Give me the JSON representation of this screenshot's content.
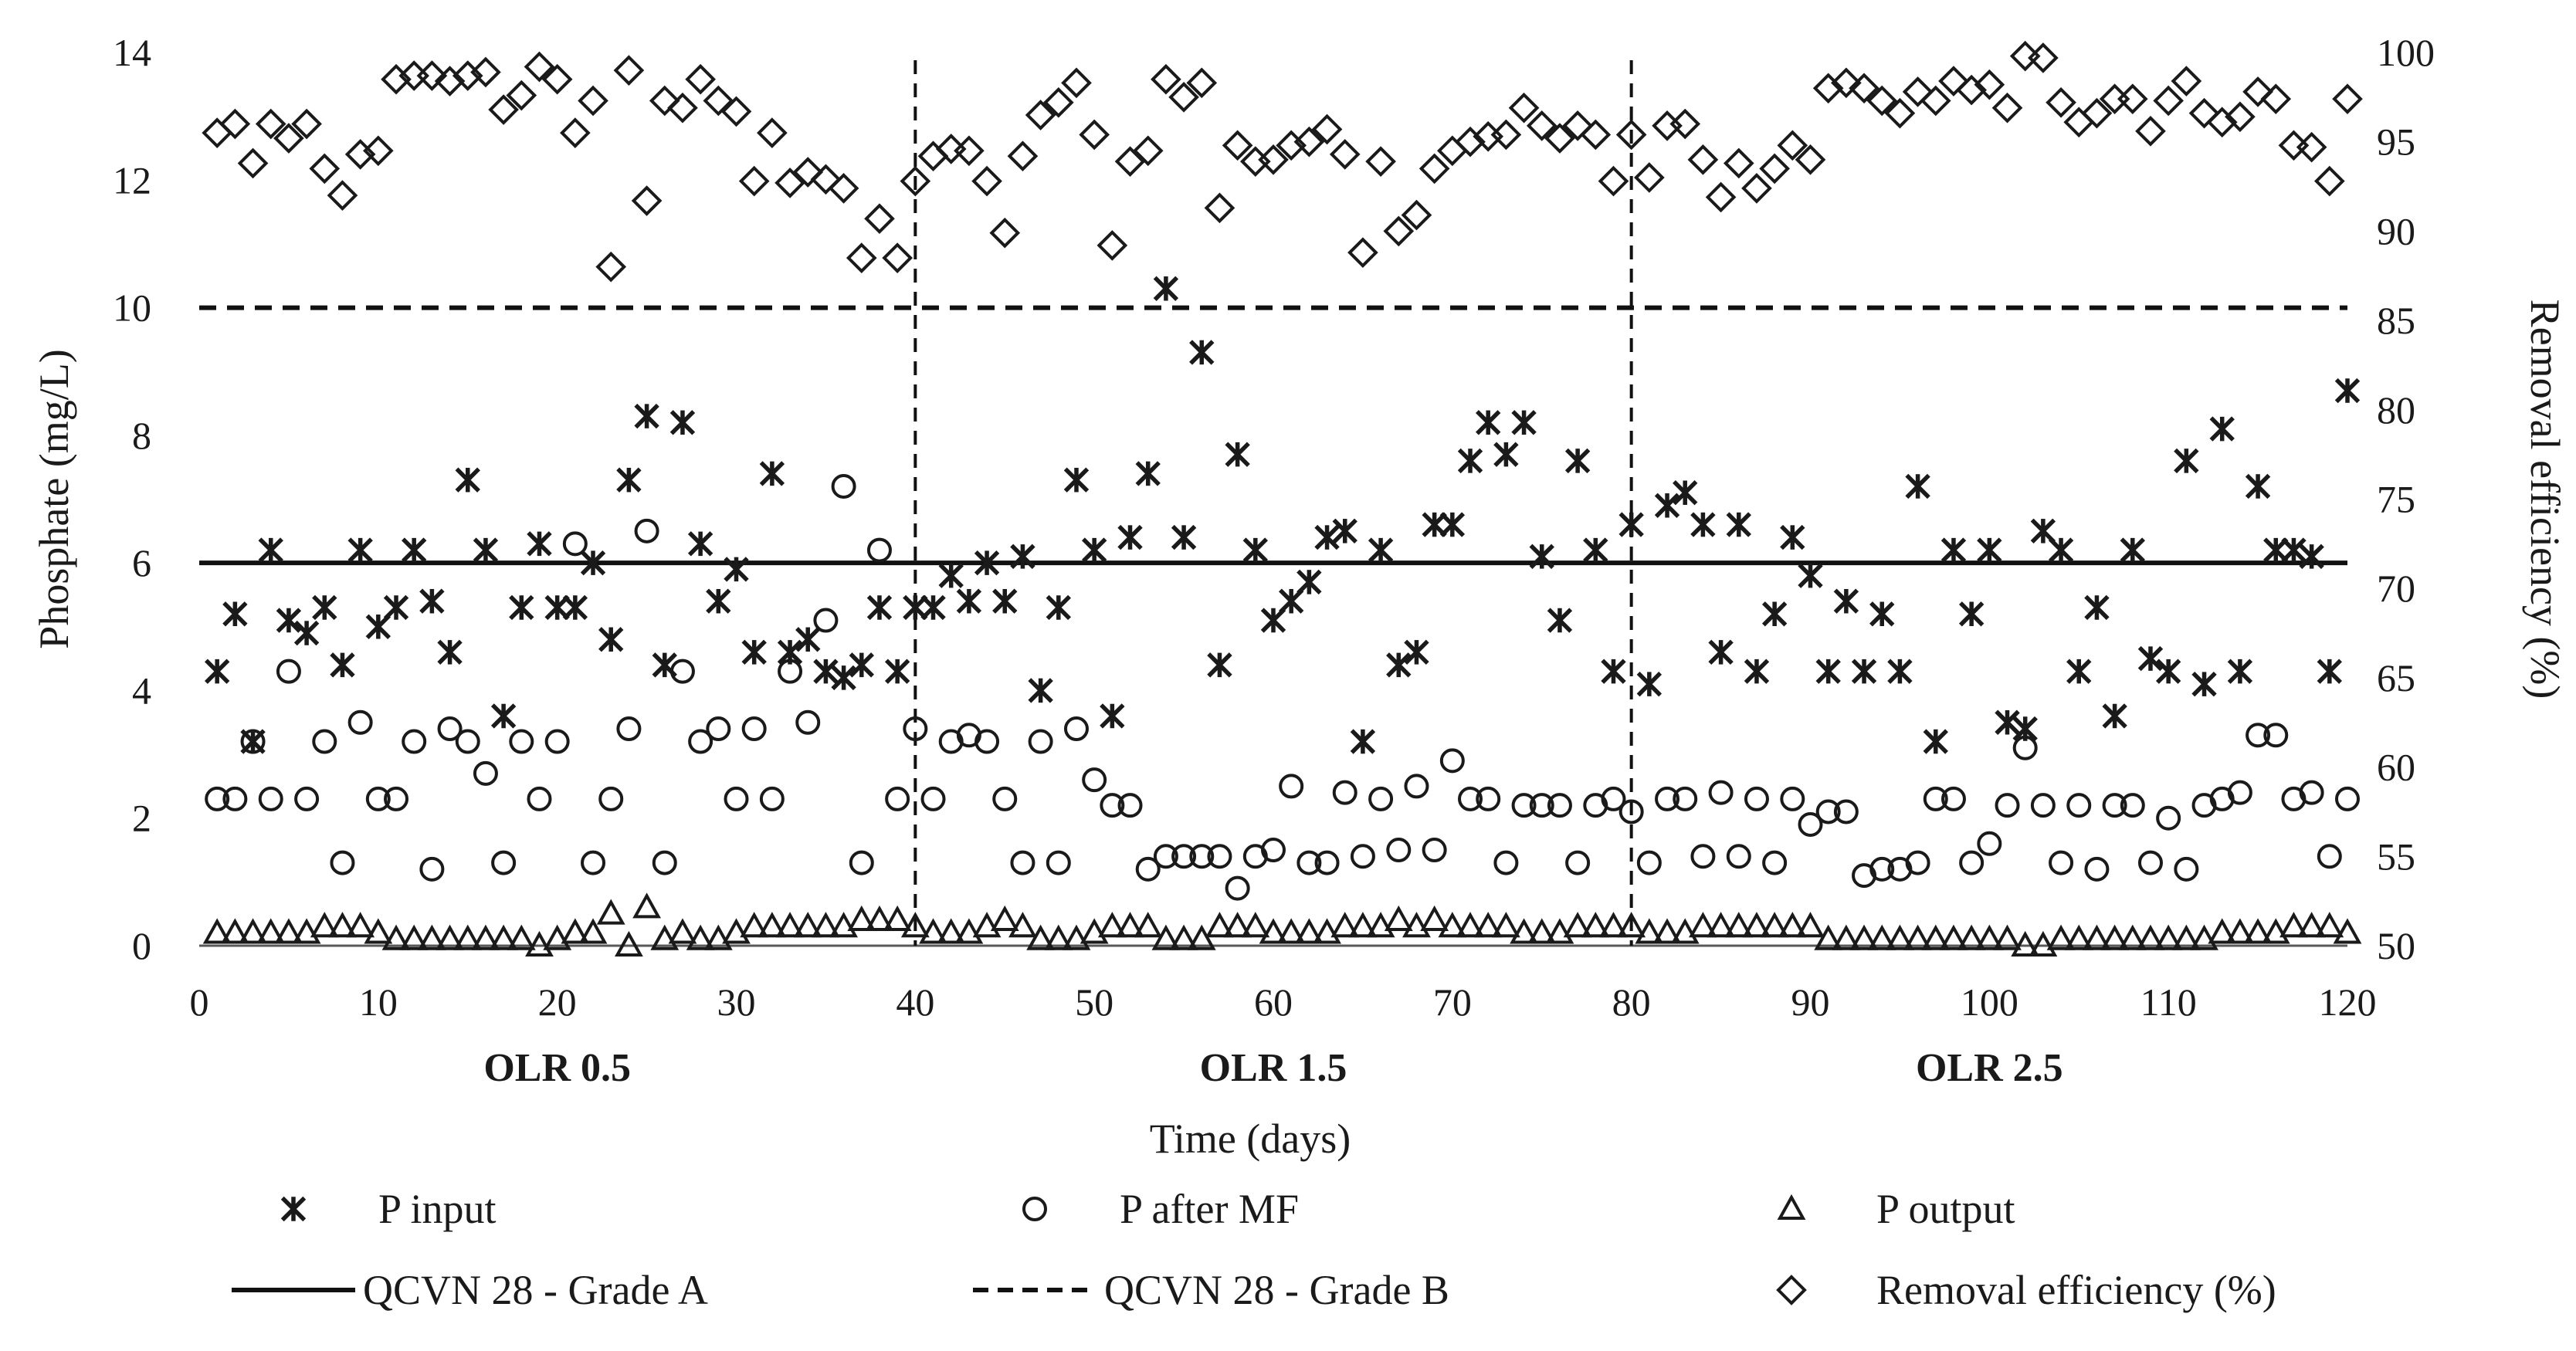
{
  "chart_data": {
    "type": "scatter",
    "title": "",
    "xlabel": "Time (days)",
    "ylabel_left": "Phosphate (mg/L)",
    "ylabel_right": "Removal efficiency (%)",
    "xlim": [
      0,
      120
    ],
    "ylim_left": [
      0,
      14
    ],
    "ylim_right": [
      50,
      100
    ],
    "x_ticks": [
      0,
      10,
      20,
      30,
      40,
      50,
      60,
      70,
      80,
      90,
      100,
      110,
      120
    ],
    "y_left_ticks": [
      0,
      2,
      4,
      6,
      8,
      10,
      12,
      14
    ],
    "y_right_ticks": [
      50,
      55,
      60,
      65,
      70,
      75,
      80,
      85,
      90,
      95,
      100
    ],
    "grid": false,
    "phase_dividers": [
      40,
      80
    ],
    "phases": [
      {
        "label": "OLR 0.5",
        "center_day": 20
      },
      {
        "label": "OLR 1.5",
        "center_day": 60
      },
      {
        "label": "OLR 2.5",
        "center_day": 100
      }
    ],
    "reference_lines": [
      {
        "name": "QCVN 28 - Grade A",
        "value": 6,
        "style": "solid"
      },
      {
        "name": "QCVN 28 - Grade B",
        "value": 10,
        "style": "dashed"
      }
    ],
    "legend_position": "bottom",
    "series": [
      {
        "name": "P input",
        "marker": "asterisk",
        "axis": "left",
        "x": [
          1,
          2,
          3,
          4,
          5,
          6,
          7,
          8,
          9,
          10,
          11,
          12,
          13,
          14,
          15,
          16,
          17,
          18,
          19,
          20,
          21,
          22,
          23,
          24,
          25,
          26,
          27,
          28,
          29,
          30,
          31,
          32,
          33,
          34,
          35,
          36,
          37,
          38,
          39,
          40,
          41,
          42,
          43,
          44,
          45,
          46,
          47,
          48,
          49,
          50,
          51,
          52,
          53,
          54,
          55,
          56,
          57,
          58,
          59,
          60,
          61,
          62,
          63,
          64,
          65,
          66,
          67,
          68,
          69,
          70,
          71,
          72,
          73,
          74,
          75,
          76,
          77,
          78,
          79,
          80,
          81,
          82,
          83,
          84,
          85,
          86,
          87,
          88,
          89,
          90,
          91,
          92,
          93,
          94,
          95,
          96,
          97,
          98,
          99,
          100,
          101,
          102,
          103,
          104,
          105,
          106,
          107,
          108,
          109,
          110,
          111,
          112,
          113,
          114,
          115,
          116,
          117,
          118,
          119,
          120
        ],
        "values": [
          4.3,
          5.2,
          3.2,
          6.2,
          5.1,
          4.9,
          5.3,
          4.4,
          6.2,
          5.0,
          5.3,
          6.2,
          5.4,
          4.6,
          7.3,
          6.2,
          3.6,
          5.3,
          6.3,
          5.3,
          5.3,
          6.0,
          4.8,
          7.3,
          8.3,
          4.4,
          8.2,
          6.3,
          5.4,
          5.9,
          4.6,
          7.4,
          4.6,
          4.8,
          4.3,
          4.2,
          4.4,
          5.3,
          4.3,
          5.3,
          5.3,
          5.8,
          5.4,
          6.0,
          5.4,
          6.1,
          4.0,
          5.3,
          7.3,
          6.2,
          3.6,
          6.4,
          7.4,
          10.3,
          6.4,
          9.3,
          4.4,
          7.7,
          6.2,
          5.1,
          5.4,
          5.7,
          6.4,
          6.5,
          3.2,
          6.2,
          4.4,
          4.6,
          6.6,
          6.6,
          7.6,
          8.2,
          7.7,
          8.2,
          6.1,
          5.1,
          7.6,
          6.2,
          4.3,
          6.6,
          4.1,
          6.9,
          7.1,
          6.6,
          4.6,
          6.6,
          4.3,
          5.2,
          6.4,
          5.8,
          4.3,
          5.4,
          4.3,
          5.2,
          4.3,
          7.2,
          3.2,
          6.2,
          5.2,
          6.2,
          3.5,
          3.4,
          6.5,
          6.2,
          4.3,
          5.3,
          3.6,
          6.2,
          4.5,
          4.3,
          7.6,
          4.1,
          8.1,
          4.3,
          7.2,
          6.2,
          6.2,
          6.1,
          4.3,
          8.7
        ]
      },
      {
        "name": "P after MF",
        "marker": "circle",
        "axis": "left",
        "x": [
          1,
          2,
          3,
          4,
          5,
          6,
          7,
          8,
          9,
          10,
          11,
          12,
          13,
          14,
          15,
          16,
          17,
          18,
          19,
          20,
          21,
          22,
          23,
          24,
          25,
          26,
          27,
          28,
          29,
          30,
          31,
          32,
          33,
          34,
          35,
          36,
          37,
          38,
          39,
          40,
          41,
          42,
          43,
          44,
          45,
          46,
          47,
          48,
          49,
          50,
          51,
          52,
          53,
          54,
          55,
          56,
          57,
          58,
          59,
          60,
          61,
          62,
          63,
          64,
          65,
          66,
          67,
          68,
          69,
          70,
          71,
          72,
          73,
          74,
          75,
          76,
          77,
          78,
          79,
          80,
          81,
          82,
          83,
          84,
          85,
          86,
          87,
          88,
          89,
          90,
          91,
          92,
          93,
          94,
          95,
          96,
          97,
          98,
          99,
          100,
          101,
          102,
          103,
          104,
          105,
          106,
          107,
          108,
          109,
          110,
          111,
          112,
          113,
          114,
          115,
          116,
          117,
          118,
          119,
          120
        ],
        "values": [
          2.3,
          2.3,
          3.2,
          2.3,
          4.3,
          2.3,
          3.2,
          1.3,
          3.5,
          2.3,
          2.3,
          3.2,
          1.2,
          3.4,
          3.2,
          2.7,
          1.3,
          3.2,
          2.3,
          3.2,
          6.3,
          1.3,
          2.3,
          3.4,
          6.5,
          1.3,
          4.3,
          3.2,
          3.4,
          2.3,
          3.4,
          2.3,
          4.3,
          3.5,
          5.1,
          7.2,
          1.3,
          6.2,
          2.3,
          3.4,
          2.3,
          3.2,
          3.3,
          3.2,
          2.3,
          1.3,
          3.2,
          1.3,
          3.4,
          2.6,
          2.2,
          2.2,
          1.2,
          1.4,
          1.4,
          1.4,
          1.4,
          0.9,
          1.4,
          1.5,
          2.5,
          1.3,
          1.3,
          2.4,
          1.4,
          2.3,
          1.5,
          2.5,
          1.5,
          2.9,
          2.3,
          2.3,
          1.3,
          2.2,
          2.2,
          2.2,
          1.3,
          2.2,
          2.3,
          2.1,
          1.3,
          2.3,
          2.3,
          1.4,
          2.4,
          1.4,
          2.3,
          1.3,
          2.3,
          1.9,
          2.1,
          2.1,
          1.1,
          1.2,
          1.2,
          1.3,
          2.3,
          2.3,
          1.3,
          1.6,
          2.2,
          3.1,
          2.2,
          1.3,
          2.2,
          1.2,
          2.2,
          2.2,
          1.3,
          2.0,
          1.2,
          2.2,
          2.3,
          2.4,
          3.3,
          3.3,
          2.3,
          2.4,
          1.4,
          2.3
        ]
      },
      {
        "name": "P output",
        "marker": "triangle",
        "axis": "left",
        "x": [
          1,
          2,
          3,
          4,
          5,
          6,
          7,
          8,
          9,
          10,
          11,
          12,
          13,
          14,
          15,
          16,
          17,
          18,
          19,
          20,
          21,
          22,
          23,
          24,
          25,
          26,
          27,
          28,
          29,
          30,
          31,
          32,
          33,
          34,
          35,
          36,
          37,
          38,
          39,
          40,
          41,
          42,
          43,
          44,
          45,
          46,
          47,
          48,
          49,
          50,
          51,
          52,
          53,
          54,
          55,
          56,
          57,
          58,
          59,
          60,
          61,
          62,
          63,
          64,
          65,
          66,
          67,
          68,
          69,
          70,
          71,
          72,
          73,
          74,
          75,
          76,
          77,
          78,
          79,
          80,
          81,
          82,
          83,
          84,
          85,
          86,
          87,
          88,
          89,
          90,
          91,
          92,
          93,
          94,
          95,
          96,
          97,
          98,
          99,
          100,
          101,
          102,
          103,
          104,
          105,
          106,
          107,
          108,
          109,
          110,
          111,
          112,
          113,
          114,
          115,
          116,
          117,
          118,
          119,
          120
        ],
        "values": [
          0.2,
          0.2,
          0.2,
          0.2,
          0.2,
          0.2,
          0.3,
          0.3,
          0.3,
          0.2,
          0.1,
          0.1,
          0.1,
          0.1,
          0.1,
          0.1,
          0.1,
          0.1,
          0.0,
          0.1,
          0.2,
          0.2,
          0.5,
          0.0,
          0.6,
          0.1,
          0.2,
          0.1,
          0.1,
          0.2,
          0.3,
          0.3,
          0.3,
          0.3,
          0.3,
          0.3,
          0.4,
          0.4,
          0.4,
          0.3,
          0.2,
          0.2,
          0.2,
          0.3,
          0.4,
          0.3,
          0.1,
          0.1,
          0.1,
          0.2,
          0.3,
          0.3,
          0.3,
          0.1,
          0.1,
          0.1,
          0.3,
          0.3,
          0.3,
          0.2,
          0.2,
          0.2,
          0.2,
          0.3,
          0.3,
          0.3,
          0.4,
          0.3,
          0.4,
          0.3,
          0.3,
          0.3,
          0.3,
          0.2,
          0.2,
          0.2,
          0.3,
          0.3,
          0.3,
          0.3,
          0.2,
          0.2,
          0.2,
          0.3,
          0.3,
          0.3,
          0.3,
          0.3,
          0.3,
          0.3,
          0.1,
          0.1,
          0.1,
          0.1,
          0.1,
          0.1,
          0.1,
          0.1,
          0.1,
          0.1,
          0.1,
          0.0,
          0.0,
          0.1,
          0.1,
          0.1,
          0.1,
          0.1,
          0.1,
          0.1,
          0.1,
          0.1,
          0.2,
          0.2,
          0.2,
          0.2,
          0.3,
          0.3,
          0.3,
          0.2
        ]
      },
      {
        "name": "Removal efficiency (%)",
        "marker": "diamond",
        "axis": "right",
        "x": [
          1,
          2,
          3,
          4,
          5,
          6,
          7,
          8,
          9,
          10,
          11,
          12,
          13,
          14,
          15,
          16,
          17,
          18,
          19,
          20,
          21,
          22,
          23,
          24,
          25,
          26,
          27,
          28,
          29,
          30,
          31,
          32,
          33,
          34,
          35,
          36,
          37,
          38,
          39,
          40,
          41,
          42,
          43,
          44,
          45,
          46,
          47,
          48,
          49,
          50,
          51,
          52,
          53,
          54,
          55,
          56,
          57,
          58,
          59,
          60,
          61,
          62,
          63,
          64,
          65,
          66,
          67,
          68,
          69,
          70,
          71,
          72,
          73,
          74,
          75,
          76,
          77,
          78,
          79,
          80,
          81,
          82,
          83,
          84,
          85,
          86,
          87,
          88,
          89,
          90,
          91,
          92,
          93,
          94,
          95,
          96,
          97,
          98,
          99,
          100,
          101,
          102,
          103,
          104,
          105,
          106,
          107,
          108,
          109,
          110,
          111,
          112,
          113,
          114,
          115,
          116,
          117,
          118,
          119,
          120
        ],
        "values": [
          95.5,
          96.0,
          93.8,
          96.0,
          95.2,
          96.0,
          93.5,
          92.0,
          94.3,
          94.5,
          98.5,
          98.7,
          98.7,
          98.4,
          98.7,
          98.9,
          96.8,
          97.6,
          99.2,
          98.5,
          95.5,
          97.3,
          88.0,
          99.0,
          91.7,
          97.3,
          96.9,
          98.5,
          97.3,
          96.7,
          92.8,
          95.5,
          92.7,
          93.3,
          92.9,
          92.4,
          88.5,
          90.7,
          88.5,
          92.8,
          94.2,
          94.6,
          94.5,
          92.8,
          89.9,
          94.2,
          96.5,
          97.2,
          98.3,
          95.4,
          89.2,
          93.9,
          94.5,
          98.5,
          97.5,
          98.3,
          91.3,
          94.8,
          93.9,
          94.0,
          94.8,
          95.0,
          95.7,
          94.3,
          88.8,
          93.9,
          90.0,
          90.9,
          93.5,
          94.5,
          95.0,
          95.3,
          95.4,
          96.9,
          95.9,
          95.2,
          95.9,
          95.4,
          92.8,
          95.4,
          93.0,
          95.9,
          96.0,
          94.0,
          91.9,
          93.8,
          92.4,
          93.5,
          94.8,
          94.0,
          98.0,
          98.3,
          98.0,
          97.3,
          96.6,
          97.8,
          97.3,
          98.4,
          97.9,
          98.2,
          96.9,
          99.8,
          99.7,
          97.2,
          96.1,
          96.6,
          97.4,
          97.4,
          95.6,
          97.3,
          98.4,
          96.6,
          96.1,
          96.4,
          97.8,
          97.4,
          94.8,
          94.7,
          92.8,
          97.4
        ]
      }
    ]
  }
}
